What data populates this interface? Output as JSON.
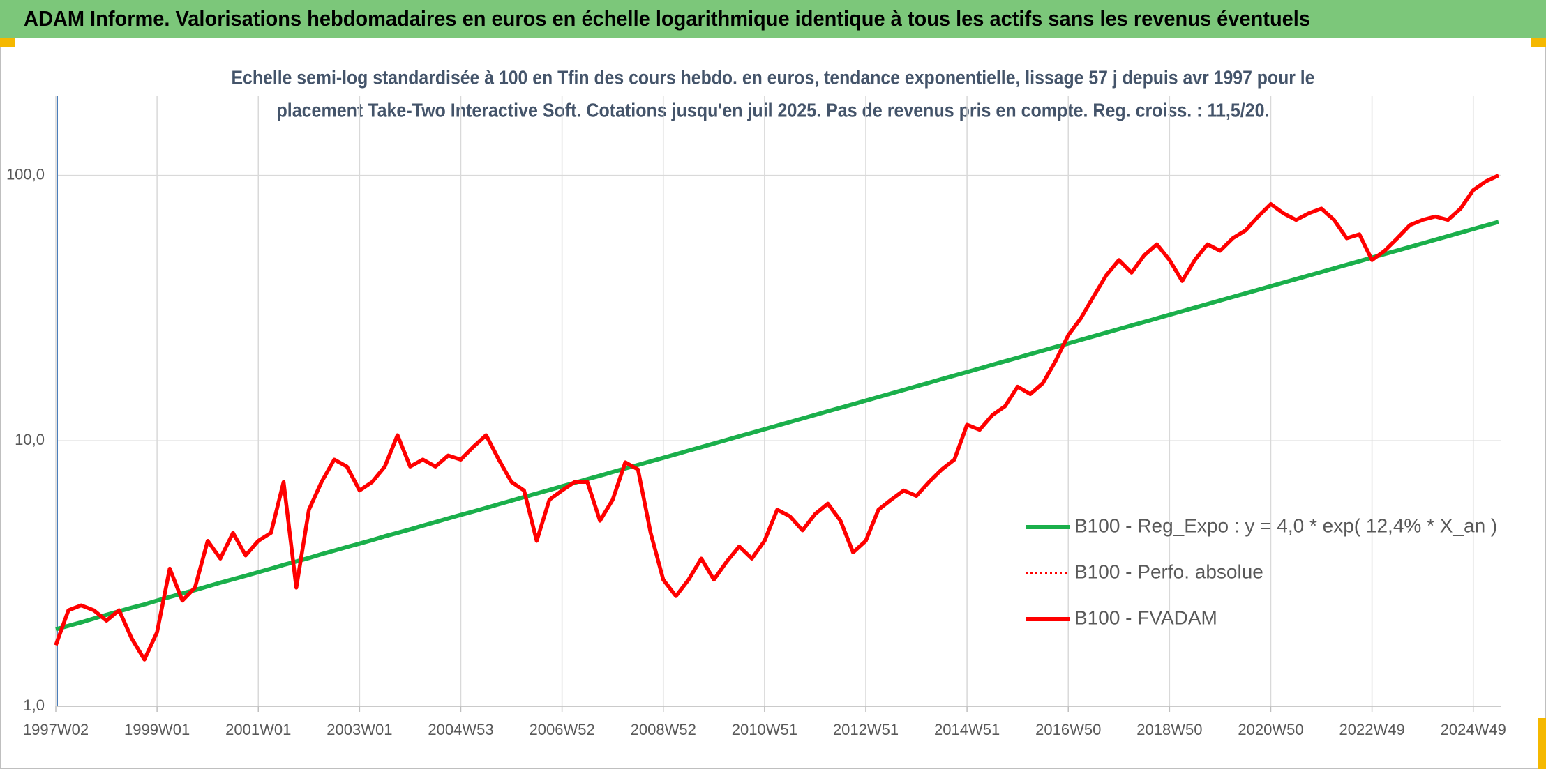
{
  "chart_data": {
    "type": "line",
    "title": "ADAM Informe. Valorisations hebdomadaires en euros en échelle logarithmique identique à tous les actifs sans les revenus éventuels",
    "subtitle": [
      "Echelle semi-log standardisée à 100 en Tfin des cours hebdo. en euros, tendance exponentielle, lissage 57 j depuis avr 1997 pour le",
      "placement Take-Two Interactive Soft. Cotations jusqu'en juil 2025. Pas de revenus pris en compte. Reg. croiss. : 11,5/20."
    ],
    "categories": [
      "1997W02",
      null,
      null,
      null,
      null,
      null,
      null,
      null,
      "1999W01",
      null,
      null,
      null,
      null,
      null,
      null,
      null,
      "2001W01",
      null,
      null,
      null,
      null,
      null,
      null,
      null,
      "2003W01",
      null,
      null,
      null,
      null,
      null,
      null,
      null,
      "2004W53",
      null,
      null,
      null,
      null,
      null,
      null,
      null,
      "2006W52",
      null,
      null,
      null,
      null,
      null,
      null,
      null,
      "2008W52",
      null,
      null,
      null,
      null,
      null,
      null,
      null,
      "2010W51",
      null,
      null,
      null,
      null,
      null,
      null,
      null,
      "2012W51",
      null,
      null,
      null,
      null,
      null,
      null,
      null,
      "2014W51",
      null,
      null,
      null,
      null,
      null,
      null,
      null,
      "2016W50",
      null,
      null,
      null,
      null,
      null,
      null,
      null,
      "2018W50",
      null,
      null,
      null,
      null,
      null,
      null,
      null,
      "2020W50",
      null,
      null,
      null,
      null,
      null,
      null,
      null,
      "2022W49",
      null,
      null,
      null,
      null,
      null,
      null,
      null,
      "2024W49",
      null,
      null
    ],
    "series": [
      {
        "name": "B100 - Reg_Expo : y = 4,0 * exp( 12,4% *  X_an )",
        "color": "#1aaf4b",
        "dash": "solid",
        "values": [
          1.95,
          2.01,
          2.07,
          2.14,
          2.21,
          2.28,
          2.35,
          2.42,
          2.5,
          2.58,
          2.66,
          2.74,
          2.83,
          2.92,
          3.01,
          3.1,
          3.2,
          3.3,
          3.41,
          3.51,
          3.62,
          3.74,
          3.86,
          3.98,
          4.1,
          4.23,
          4.37,
          4.5,
          4.64,
          4.79,
          4.94,
          5.1,
          5.26,
          5.42,
          5.59,
          5.77,
          5.95,
          6.14,
          6.33,
          6.53,
          6.74,
          6.95,
          7.17,
          7.39,
          7.63,
          7.87,
          8.11,
          8.37,
          8.63,
          8.9,
          9.18,
          9.47,
          9.77,
          10.08,
          10.4,
          10.72,
          11.06,
          11.41,
          11.77,
          12.14,
          12.52,
          12.92,
          13.32,
          13.74,
          14.18,
          14.62,
          15.08,
          15.56,
          16.05,
          16.55,
          17.08,
          17.61,
          18.17,
          18.74,
          19.33,
          19.94,
          20.57,
          21.22,
          21.88,
          22.57,
          23.28,
          24.02,
          24.77,
          25.55,
          26.36,
          27.19,
          28.04,
          28.93,
          29.84,
          30.78,
          31.75,
          32.75,
          33.78,
          34.84,
          35.94,
          37.07,
          38.24,
          39.44,
          40.68,
          41.96,
          43.28,
          44.65,
          46.05,
          47.5,
          49.0,
          50.54,
          52.13,
          53.77,
          55.47,
          57.21,
          59.01,
          60.87,
          62.79,
          64.77,
          66.81
        ]
      },
      {
        "name": "B100 - Perfo. absolue",
        "color": "#ff0000",
        "dash": "dotted",
        "values": [
          1.7,
          2.3,
          2.4,
          2.3,
          2.1,
          2.3,
          1.8,
          1.5,
          1.9,
          3.3,
          2.5,
          2.8,
          4.2,
          3.6,
          4.5,
          3.7,
          4.2,
          4.5,
          7.0,
          2.8,
          5.5,
          7.0,
          8.5,
          8.0,
          6.5,
          7.0,
          8.0,
          10.5,
          8.0,
          8.5,
          8.0,
          8.8,
          8.5,
          9.5,
          10.5,
          8.5,
          7.0,
          6.5,
          4.2,
          6.0,
          6.5,
          7.0,
          7.0,
          5.0,
          6.0,
          8.3,
          7.8,
          4.5,
          3.0,
          2.6,
          3.0,
          3.6,
          3.0,
          3.5,
          4.0,
          3.6,
          4.2,
          5.5,
          5.2,
          4.6,
          5.3,
          5.8,
          5.0,
          3.8,
          4.2,
          5.5,
          6.0,
          6.5,
          6.2,
          7.0,
          7.8,
          8.5,
          11.5,
          11.0,
          12.5,
          13.5,
          16.0,
          15.0,
          16.5,
          20.0,
          25.0,
          29.0,
          35.0,
          42.0,
          48.0,
          43.0,
          50.0,
          55.0,
          48.0,
          40.0,
          48.0,
          55.0,
          52.0,
          58.0,
          62.0,
          70.0,
          78.0,
          72.0,
          68.0,
          72.0,
          75.0,
          68.0,
          58.0,
          60.0,
          48.0,
          52.0,
          58.0,
          65.0,
          68.0,
          70.0,
          68.0,
          75.0,
          88.0,
          95.0,
          100.0
        ]
      },
      {
        "name": "B100 - FVADAM",
        "color": "#ff0000",
        "dash": "solid",
        "values": [
          1.7,
          2.3,
          2.4,
          2.3,
          2.1,
          2.3,
          1.8,
          1.5,
          1.9,
          3.3,
          2.5,
          2.8,
          4.2,
          3.6,
          4.5,
          3.7,
          4.2,
          4.5,
          7.0,
          2.8,
          5.5,
          7.0,
          8.5,
          8.0,
          6.5,
          7.0,
          8.0,
          10.5,
          8.0,
          8.5,
          8.0,
          8.8,
          8.5,
          9.5,
          10.5,
          8.5,
          7.0,
          6.5,
          4.2,
          6.0,
          6.5,
          7.0,
          7.0,
          5.0,
          6.0,
          8.3,
          7.8,
          4.5,
          3.0,
          2.6,
          3.0,
          3.6,
          3.0,
          3.5,
          4.0,
          3.6,
          4.2,
          5.5,
          5.2,
          4.6,
          5.3,
          5.8,
          5.0,
          3.8,
          4.2,
          5.5,
          6.0,
          6.5,
          6.2,
          7.0,
          7.8,
          8.5,
          11.5,
          11.0,
          12.5,
          13.5,
          16.0,
          15.0,
          16.5,
          20.0,
          25.0,
          29.0,
          35.0,
          42.0,
          48.0,
          43.0,
          50.0,
          55.0,
          48.0,
          40.0,
          48.0,
          55.0,
          52.0,
          58.0,
          62.0,
          70.0,
          78.0,
          72.0,
          68.0,
          72.0,
          75.0,
          68.0,
          58.0,
          60.0,
          48.0,
          52.0,
          58.0,
          65.0,
          68.0,
          70.0,
          68.0,
          75.0,
          88.0,
          95.0,
          100.0
        ]
      }
    ],
    "ylim": [
      1,
      200
    ],
    "yticks": [
      {
        "value": 1,
        "label": "1,0"
      },
      {
        "value": 10,
        "label": "10,0"
      },
      {
        "value": 100,
        "label": "100,0"
      }
    ],
    "ylog": true,
    "grid": true,
    "legend": "right"
  }
}
